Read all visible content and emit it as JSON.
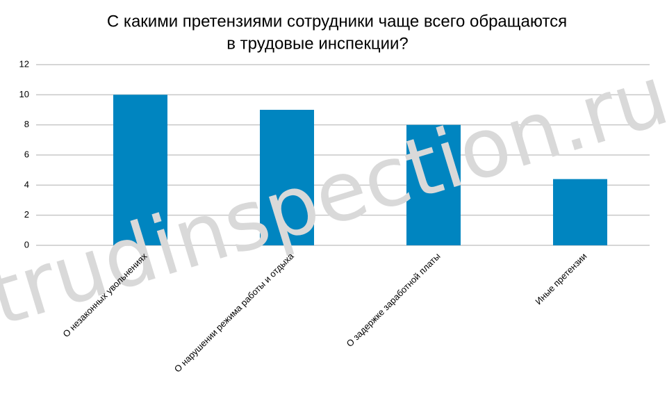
{
  "watermark": "trudinspection.ru",
  "chart_data": {
    "type": "bar",
    "title": [
      "С какими претензиями сотрудники чаще всего обращаются",
      "в трудовые инспекции?"
    ],
    "categories": [
      "О незаконных увольнениях",
      "О нарушении режима работы и отдыха",
      "О задержке заработной платы",
      "Иные претензии"
    ],
    "values": [
      10,
      9,
      8,
      4.4
    ],
    "color": "#0085c0",
    "ylim": [
      0,
      12
    ],
    "yticks": [
      0,
      2,
      4,
      6,
      8,
      10,
      12
    ],
    "grid": true
  }
}
